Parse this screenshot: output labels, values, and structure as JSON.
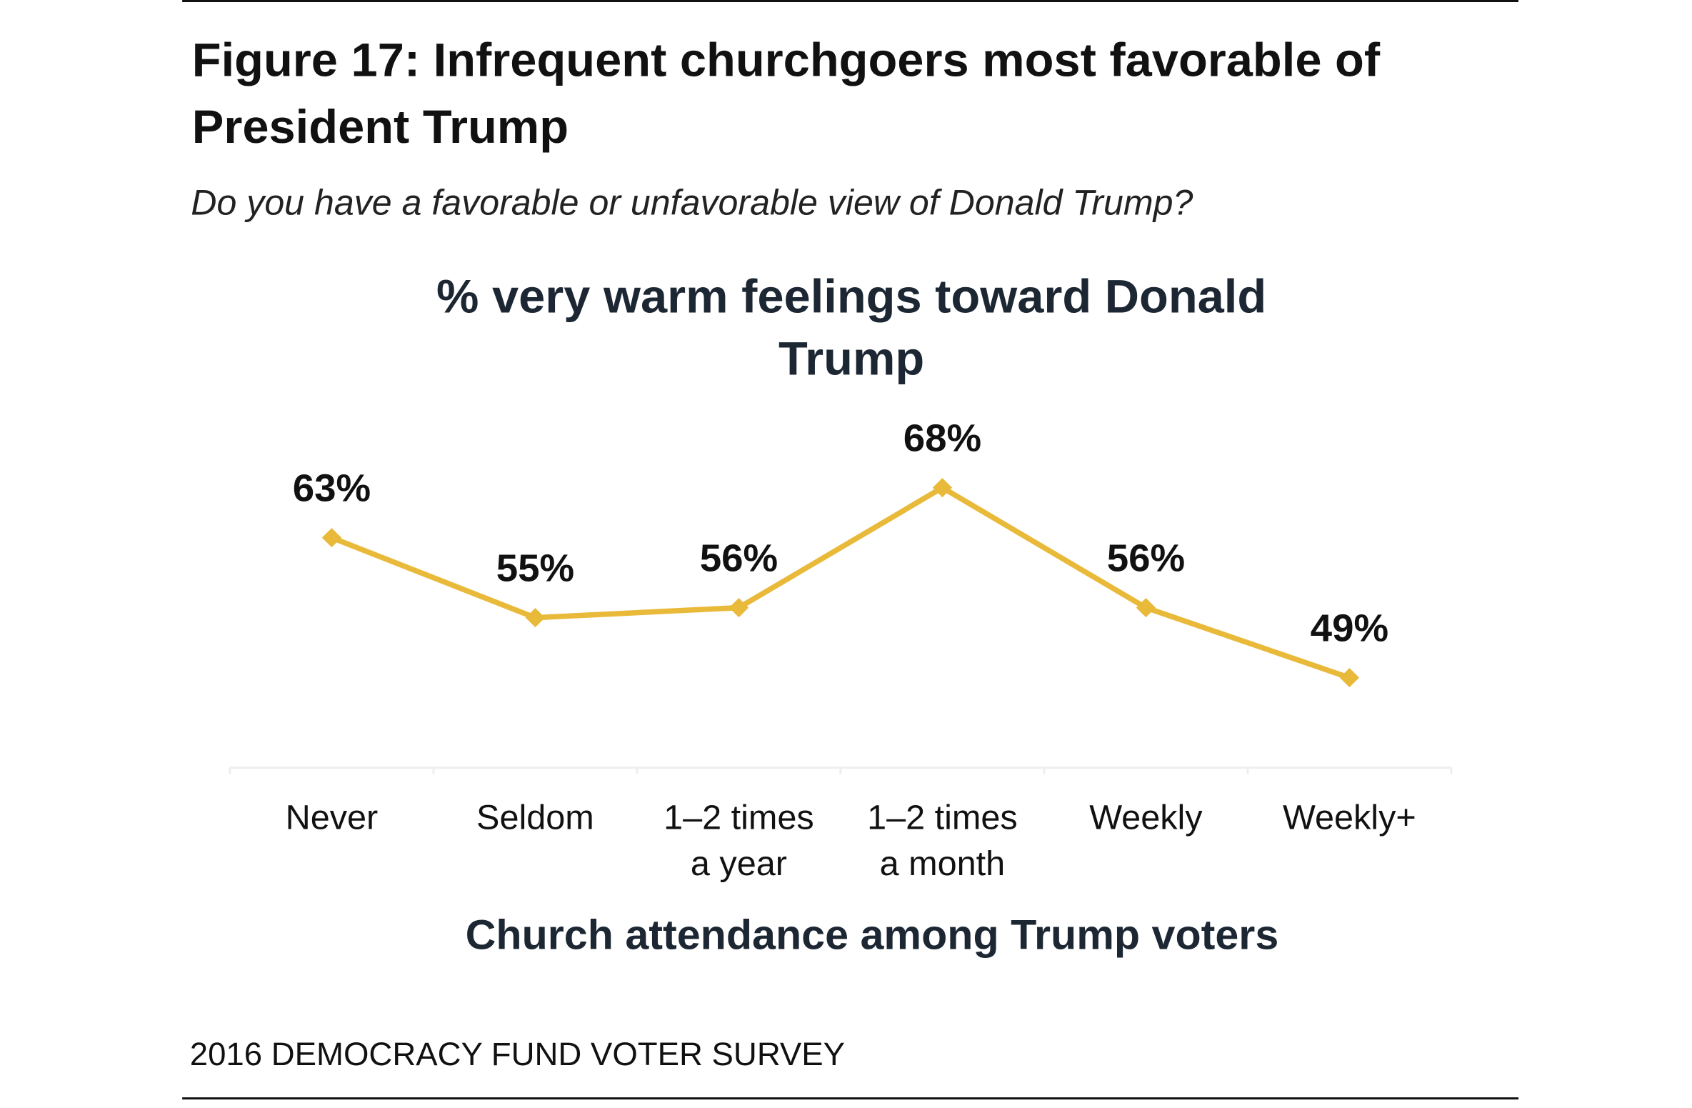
{
  "title": "Figure 17: Infrequent churchgoers most favorable of President Trump",
  "subtitle": "Do you have a favorable or unfavorable view of Donald Trump?",
  "source": "2016 DEMOCRACY FUND VOTER SURVEY",
  "chart_data": {
    "type": "line",
    "title": "% very warm feelings toward Donald Trump",
    "xlabel": "Church attendance among Trump voters",
    "ylabel": "",
    "categories": [
      [
        "Never"
      ],
      [
        "Seldom"
      ],
      [
        "1–2 times",
        "a year"
      ],
      [
        "1–2 times",
        "a month"
      ],
      [
        "Weekly"
      ],
      [
        "Weekly+"
      ]
    ],
    "values": [
      63,
      55,
      56,
      68,
      56,
      49
    ],
    "data_labels": [
      "63%",
      "55%",
      "56%",
      "68%",
      "56%",
      "49%"
    ],
    "ylim": [
      40,
      75
    ],
    "grid": false,
    "marker": "diamond",
    "line_color": "#e9b93a"
  }
}
